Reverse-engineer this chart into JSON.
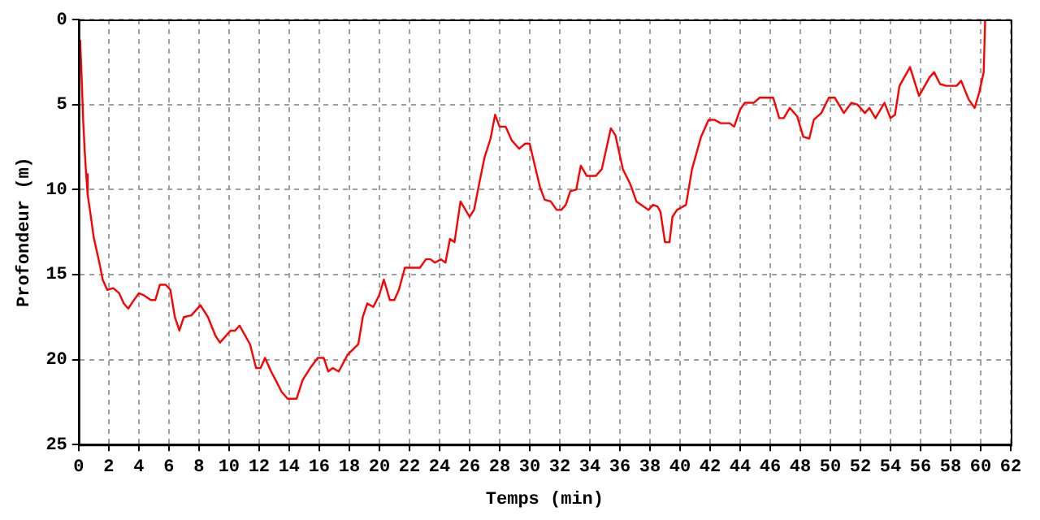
{
  "chart_data": {
    "type": "line",
    "xlabel": "Temps (min)",
    "ylabel": "Profondeur (m)",
    "xlim": [
      0,
      62
    ],
    "xticks": [
      0,
      2,
      4,
      6,
      8,
      10,
      12,
      14,
      16,
      18,
      20,
      22,
      24,
      26,
      28,
      30,
      32,
      34,
      36,
      38,
      40,
      42,
      44,
      46,
      48,
      50,
      52,
      54,
      56,
      58,
      60,
      62
    ],
    "ylim": [
      25,
      0
    ],
    "yticks": [
      0,
      5,
      10,
      15,
      20,
      25
    ],
    "grid": true,
    "legend": false,
    "marker": "none",
    "line_style": "solid",
    "series": [
      {
        "color": "#ff0000",
        "x": [
          0.1,
          0.2,
          0.3,
          0.4,
          0.5,
          0.6,
          0.75,
          1.0,
          1.4,
          1.6,
          1.9,
          2.3,
          2.7,
          3.0,
          3.3,
          3.6,
          4.0,
          4.3,
          4.8,
          5.1,
          5.4,
          5.8,
          6.1,
          6.4,
          6.7,
          7.0,
          7.5,
          8.1,
          8.6,
          9.1,
          9.4,
          10.1,
          10.4,
          10.7,
          11.4,
          11.8,
          12.1,
          12.4,
          12.8,
          13.1,
          13.5,
          13.9,
          14.5,
          14.9,
          15.4,
          15.9,
          16.3,
          16.6,
          16.9,
          17.3,
          17.9,
          18.6,
          18.9,
          19.2,
          19.6,
          20.0,
          20.3,
          20.7,
          21.0,
          21.3,
          21.7,
          22.7,
          23.1,
          23.4,
          23.7,
          24.1,
          24.4,
          24.7,
          25.0,
          25.4,
          26.0,
          26.3,
          26.7,
          27.0,
          27.4,
          27.7,
          28.0,
          28.4,
          28.8,
          29.3,
          29.7,
          30.0,
          30.4,
          30.7,
          31.0,
          31.4,
          31.8,
          32.1,
          32.4,
          32.7,
          33.1,
          33.4,
          33.8,
          34.4,
          34.8,
          35.4,
          35.7,
          36.2,
          36.7,
          37.1,
          37.9,
          38.2,
          38.5,
          38.7,
          39.0,
          39.3,
          39.5,
          39.8,
          40.4,
          40.8,
          41.4,
          41.9,
          42.3,
          42.7,
          43.3,
          43.6,
          44.0,
          44.3,
          44.9,
          45.3,
          46.2,
          46.6,
          46.9,
          47.3,
          47.8,
          48.2,
          48.6,
          48.9,
          49.4,
          49.9,
          50.3,
          50.9,
          51.4,
          51.8,
          52.3,
          52.6,
          53.0,
          53.6,
          54.0,
          54.3,
          54.6,
          55.3,
          55.9,
          56.6,
          56.9,
          57.3,
          57.7,
          58.4,
          58.7,
          59.2,
          59.6,
          59.9,
          60.2,
          60.3
        ],
        "values": [
          1.2,
          3.4,
          5.9,
          7.7,
          9.1,
          10.3,
          11.2,
          12.8,
          14.4,
          15.3,
          15.9,
          15.8,
          16.1,
          16.7,
          17.0,
          16.6,
          16.1,
          16.2,
          16.5,
          16.5,
          15.6,
          15.6,
          15.9,
          17.5,
          18.3,
          17.5,
          17.4,
          16.8,
          17.5,
          18.6,
          19.0,
          18.3,
          18.3,
          18.0,
          19.1,
          20.5,
          20.5,
          19.9,
          20.7,
          21.2,
          21.9,
          22.3,
          22.3,
          21.2,
          20.5,
          19.9,
          19.9,
          20.7,
          20.5,
          20.7,
          19.7,
          19.1,
          17.5,
          16.7,
          16.9,
          16.2,
          15.3,
          16.5,
          16.5,
          15.9,
          14.6,
          14.6,
          14.1,
          14.1,
          14.3,
          14.1,
          14.3,
          12.9,
          13.1,
          10.7,
          11.6,
          11.2,
          9.4,
          8.1,
          7.0,
          5.6,
          6.3,
          6.3,
          7.1,
          7.6,
          7.3,
          7.3,
          8.8,
          9.9,
          10.6,
          10.7,
          11.2,
          11.2,
          10.9,
          10.1,
          10.0,
          8.6,
          9.2,
          9.2,
          8.8,
          6.4,
          6.8,
          8.8,
          9.7,
          10.7,
          11.2,
          10.9,
          11.0,
          11.3,
          13.1,
          13.1,
          11.6,
          11.2,
          10.9,
          8.8,
          6.9,
          5.9,
          5.9,
          6.1,
          6.1,
          6.3,
          5.3,
          4.9,
          4.9,
          4.6,
          4.6,
          5.8,
          5.8,
          5.2,
          5.7,
          6.9,
          7.0,
          5.9,
          5.5,
          4.6,
          4.6,
          5.5,
          4.9,
          5.0,
          5.5,
          5.2,
          5.8,
          4.9,
          5.8,
          5.6,
          3.9,
          2.8,
          4.5,
          3.4,
          3.1,
          3.8,
          3.9,
          3.9,
          3.6,
          4.7,
          5.2,
          4.3,
          3.1,
          0
        ]
      }
    ]
  }
}
